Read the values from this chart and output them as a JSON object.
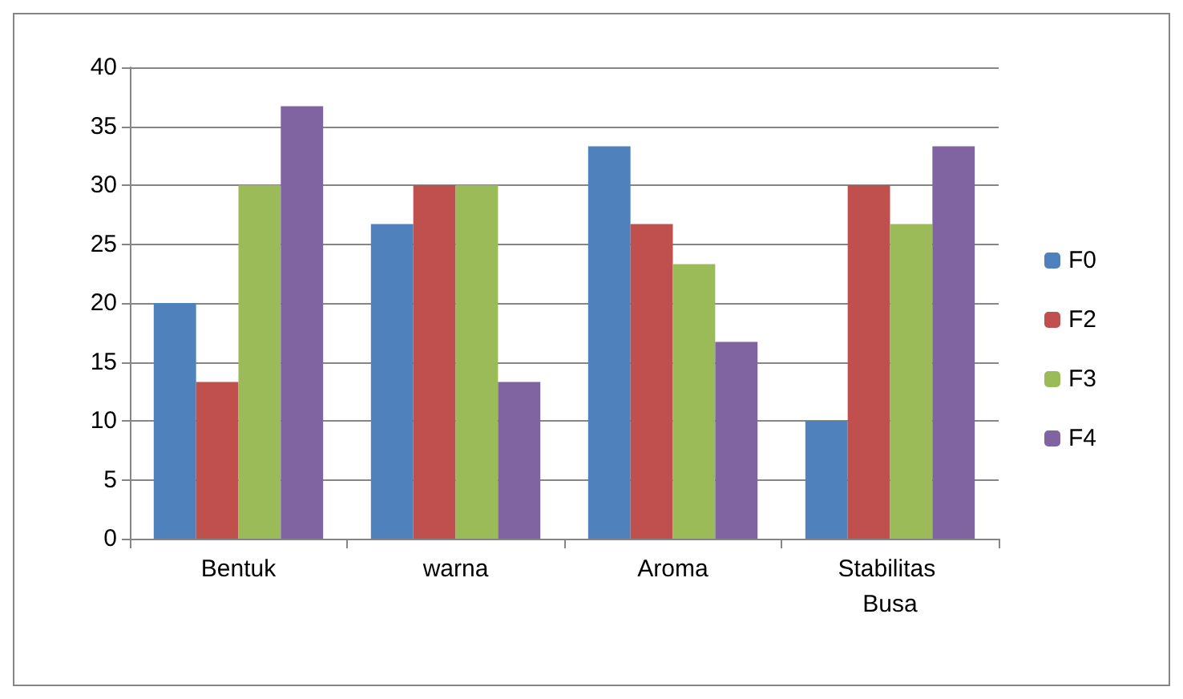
{
  "chart_data": {
    "type": "bar",
    "categories": [
      "Bentuk",
      "warna",
      "Aroma",
      "Stabilitas Busa"
    ],
    "series": [
      {
        "name": "F0",
        "color": "#4f81bd",
        "values": [
          20,
          26.7,
          33.3,
          10
        ]
      },
      {
        "name": "F2",
        "color": "#c0504d",
        "values": [
          13.3,
          30,
          26.7,
          30
        ]
      },
      {
        "name": "F3",
        "color": "#9bbb59",
        "values": [
          30,
          30,
          23.3,
          26.7
        ]
      },
      {
        "name": "F4",
        "color": "#8064a2",
        "values": [
          36.7,
          13.3,
          16.7,
          33.3
        ]
      }
    ],
    "ylim": [
      0,
      40
    ],
    "yticks": [
      0,
      5,
      10,
      15,
      20,
      25,
      30,
      35,
      40
    ],
    "grid": "y",
    "legend": "right"
  }
}
